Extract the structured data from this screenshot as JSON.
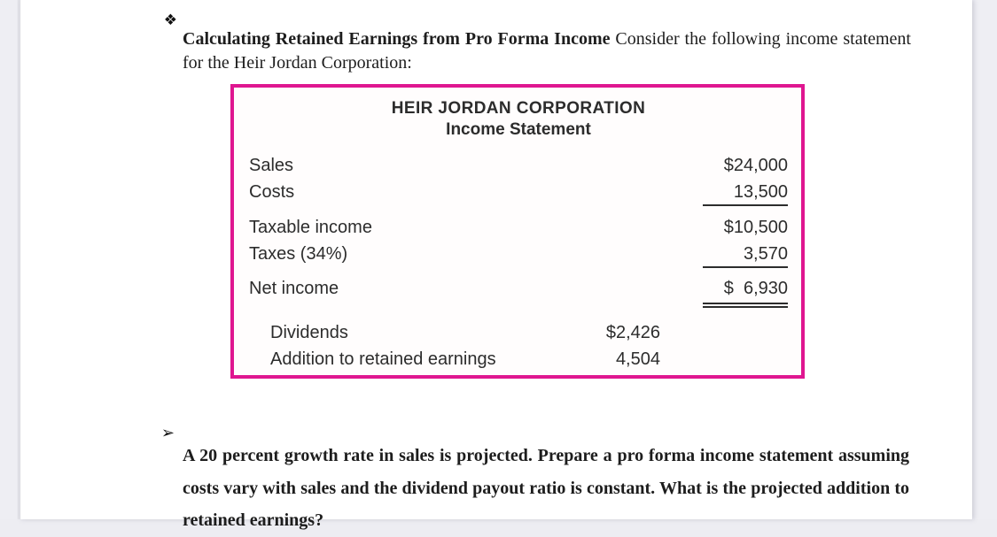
{
  "colors": {
    "table_border": "#df1690",
    "outer_background": "#ededf2",
    "page_background": "#ffffff"
  },
  "intro": {
    "bullet": "❖",
    "bold_text": "Calculating Retained Earnings from Pro Forma Income",
    "regular_text": "Consider the following income statement for the Heir Jordan Corporation:"
  },
  "statement": {
    "company": "HEIR JORDAN CORPORATION",
    "title": "Income Statement",
    "rows": [
      {
        "label": "Sales",
        "amount": "$24,000"
      },
      {
        "label": "Costs",
        "amount": "13,500"
      },
      {
        "label": "Taxable income",
        "amount": "$10,500"
      },
      {
        "label": "Taxes (34%)",
        "amount": "3,570"
      },
      {
        "label": "Net income",
        "amount": "$  6,930"
      },
      {
        "label": "Dividends",
        "amount": "$2,426"
      },
      {
        "label": "Addition to retained earnings",
        "amount": "4,504"
      }
    ]
  },
  "question": {
    "bullet": "➢",
    "text": "A 20 percent growth rate in sales is projected. Prepare a pro forma income statement assuming costs vary with sales and the dividend payout ratio is constant. What is the projected addition to retained earnings?"
  }
}
